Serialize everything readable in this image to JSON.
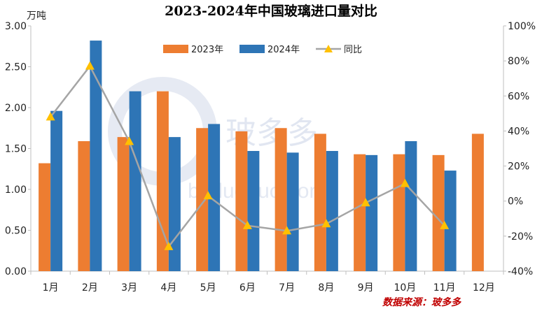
{
  "chart_data": {
    "type": "bar",
    "title": "2023-2024年中国玻璃进口量对比",
    "y_left_unit": "万吨",
    "y_left_range": [
      0,
      3.0
    ],
    "y_left_ticks": [
      "0.00",
      "0.50",
      "1.00",
      "1.50",
      "2.00",
      "2.50",
      "3.00"
    ],
    "y_right_range": [
      -40,
      100
    ],
    "y_right_ticks": [
      "-40%",
      "-20%",
      "0%",
      "20%",
      "40%",
      "60%",
      "80%",
      "100%"
    ],
    "categories": [
      "1月",
      "2月",
      "3月",
      "4月",
      "5月",
      "6月",
      "7月",
      "8月",
      "9月",
      "10月",
      "11月",
      "12月"
    ],
    "series": [
      {
        "name": "2023年",
        "type": "bar",
        "axis": "left",
        "color": "#ed7d31",
        "values": [
          1.32,
          1.59,
          1.64,
          2.2,
          1.75,
          1.71,
          1.75,
          1.68,
          1.43,
          1.43,
          1.42,
          1.68
        ]
      },
      {
        "name": "2024年",
        "type": "bar",
        "axis": "left",
        "color": "#2e75b6",
        "values": [
          1.96,
          2.82,
          2.2,
          1.64,
          1.8,
          1.47,
          1.45,
          1.47,
          1.42,
          1.59,
          1.23,
          null
        ]
      },
      {
        "name": "同比",
        "type": "line",
        "axis": "right",
        "color": "#a5a5a5",
        "marker_color": "#ffc000",
        "values": [
          48,
          77,
          34,
          -26,
          3,
          -14,
          -17,
          -13,
          -1,
          10,
          -14,
          null
        ]
      }
    ],
    "legend_position": "top-center",
    "grid": false
  },
  "watermark": {
    "text": "玻多多",
    "url": "boduoduo.com"
  },
  "source": "数据来源：玻多多"
}
